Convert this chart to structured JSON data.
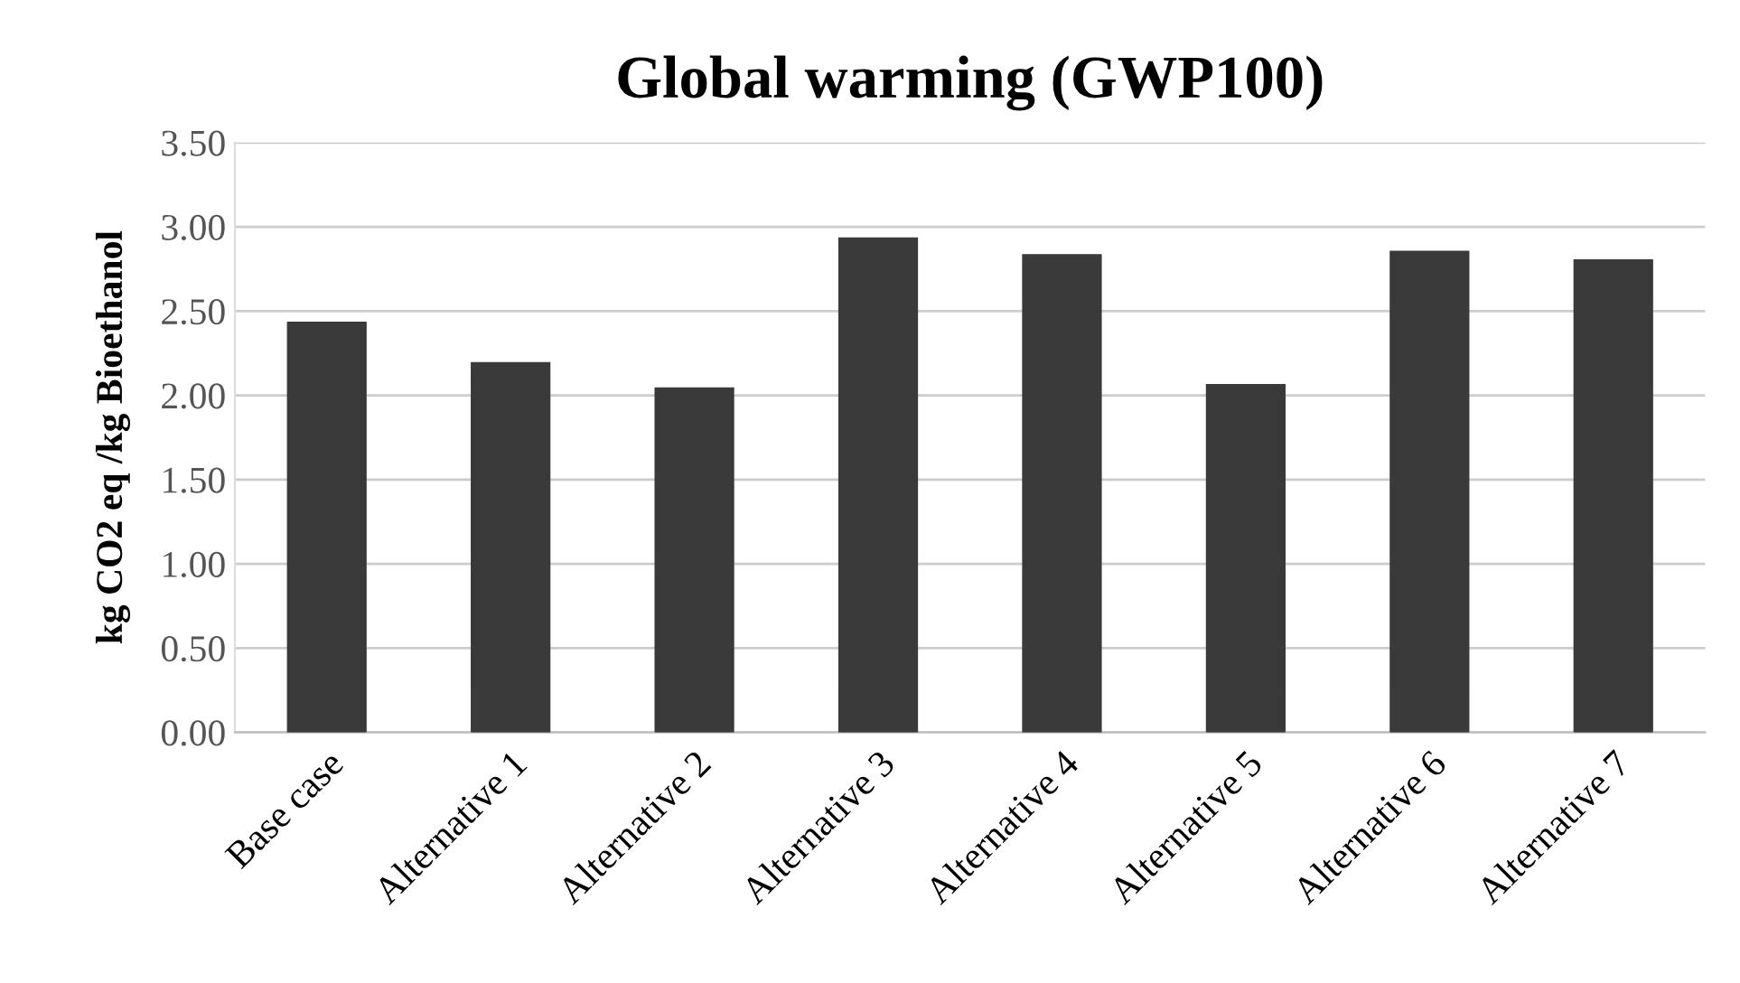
{
  "chart_data": {
    "type": "bar",
    "title": "Global warming (GWP100)",
    "ylabel": "kg CO2 eq /kg Bioethanol",
    "categories": [
      "Base case",
      "Alternative 1",
      "Alternative 2",
      "Alternative 3",
      "Alternative 4",
      "Alternative 5",
      "Alternative 6",
      "Alternative 7"
    ],
    "values": [
      2.43,
      2.19,
      2.04,
      2.93,
      2.83,
      2.06,
      2.85,
      2.8
    ],
    "color": "#3a3a3a",
    "ylim": [
      0,
      3.5
    ],
    "yticks": [
      {
        "value": 0,
        "label": "0.00"
      },
      {
        "value": 0.5,
        "label": "0.50"
      },
      {
        "value": 1.0,
        "label": "1.00"
      },
      {
        "value": 1.5,
        "label": "1.50"
      },
      {
        "value": 2.0,
        "label": "2.00"
      },
      {
        "value": 2.5,
        "label": "2.50"
      },
      {
        "value": 3.0,
        "label": "3.00"
      },
      {
        "value": 3.5,
        "label": "3.50"
      }
    ],
    "grid": "y"
  }
}
